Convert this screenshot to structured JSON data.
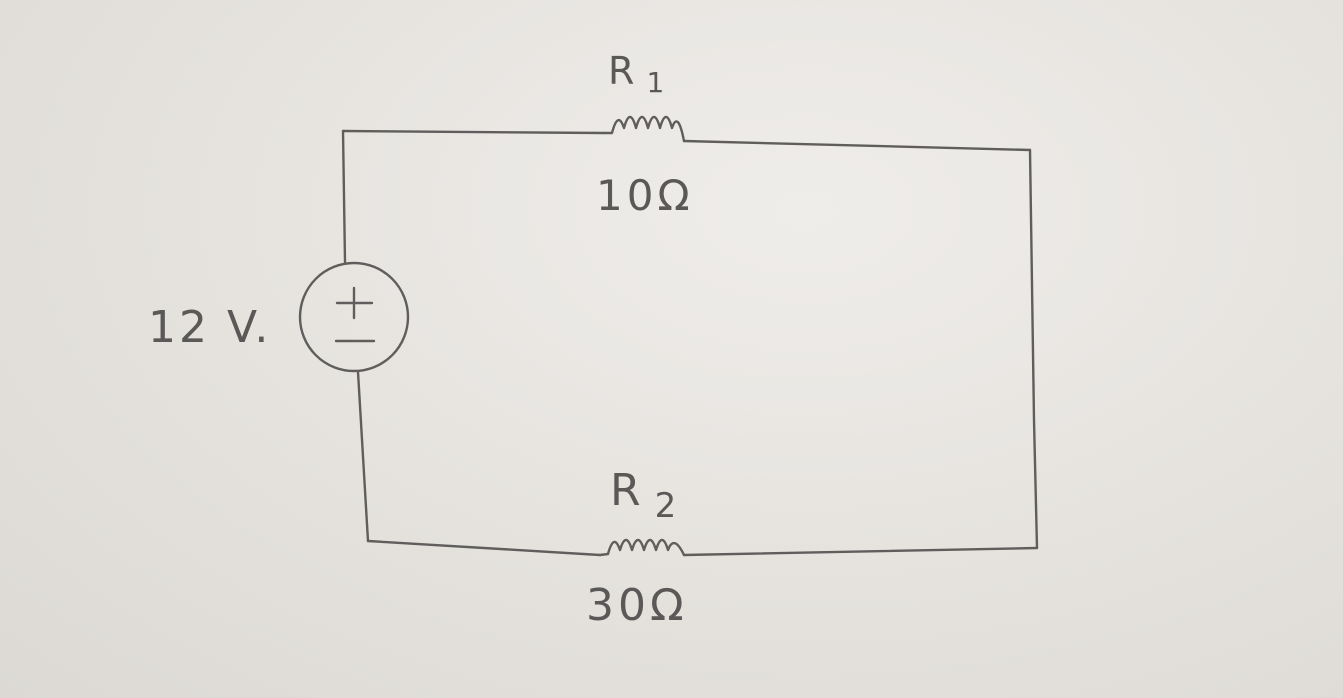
{
  "circuit": {
    "source": {
      "label": "12 V.",
      "symbol_top": "+",
      "symbol_bottom": "−"
    },
    "resistors": [
      {
        "name": "R1",
        "name_main": "R",
        "name_sub": "1",
        "value": "10Ω"
      },
      {
        "name": "R2",
        "name_main": "R",
        "name_sub": "2",
        "value": "30Ω"
      }
    ],
    "colors": {
      "paper": "#e6e3df",
      "pencil": "#5f5e5c"
    }
  }
}
